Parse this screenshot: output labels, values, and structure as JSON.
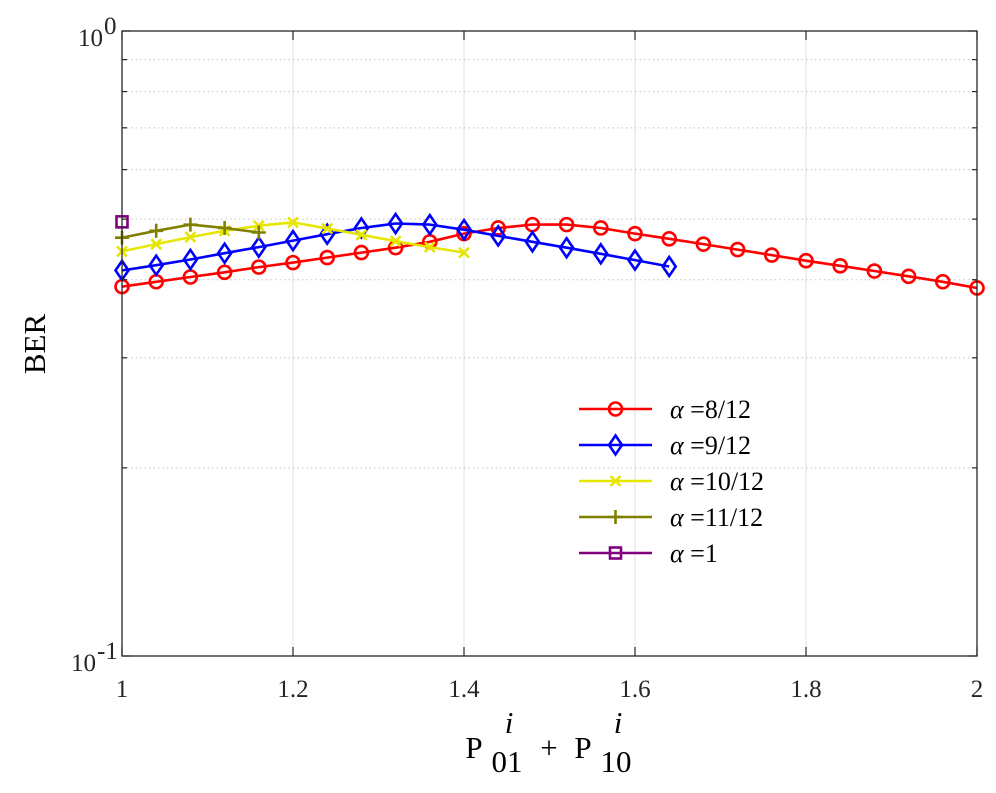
{
  "chart_data": {
    "type": "line",
    "title": "",
    "xlabel": {
      "base": "P",
      "sub1": "01",
      "sup1": "i",
      "plus": "+",
      "sub2": "10",
      "sup2": "i"
    },
    "ylabel": "BER",
    "xlim": [
      1,
      2
    ],
    "ylim": [
      0.1,
      1
    ],
    "yscale": "log",
    "grid": true,
    "x_ticks": [
      1,
      1.2,
      1.4,
      1.6,
      1.8,
      2
    ],
    "x_tick_labels": [
      "1",
      "1.2",
      "1.4",
      "1.6",
      "1.8",
      "2"
    ],
    "y_tick_labels": [
      {
        "value": 0.1,
        "base": "10",
        "exp": "-1"
      },
      {
        "value": 1,
        "base": "10",
        "exp": "0"
      }
    ],
    "legend_position": "lower-right",
    "series": [
      {
        "name": "α =8/12",
        "symbol": "α",
        "label": " =8/12",
        "color": "#ff0000",
        "marker": "circle",
        "x": [
          1,
          1.04,
          1.08,
          1.12,
          1.16,
          1.2,
          1.24,
          1.28,
          1.32,
          1.36,
          1.4,
          1.44,
          1.48,
          1.52,
          1.56,
          1.6,
          1.64,
          1.68,
          1.72,
          1.76,
          1.8,
          1.84,
          1.88,
          1.92,
          1.96,
          2
        ],
        "y": [
          0.39,
          0.397,
          0.404,
          0.411,
          0.419,
          0.426,
          0.434,
          0.442,
          0.45,
          0.46,
          0.474,
          0.484,
          0.49,
          0.49,
          0.484,
          0.474,
          0.465,
          0.456,
          0.447,
          0.438,
          0.429,
          0.421,
          0.413,
          0.405,
          0.397,
          0.388
        ]
      },
      {
        "name": "α =9/12",
        "symbol": "α",
        "label": " =9/12",
        "color": "#0000ff",
        "marker": "diamond",
        "x": [
          1,
          1.04,
          1.08,
          1.12,
          1.16,
          1.2,
          1.24,
          1.28,
          1.32,
          1.36,
          1.4,
          1.44,
          1.48,
          1.52,
          1.56,
          1.6,
          1.64
        ],
        "y": [
          0.414,
          0.422,
          0.431,
          0.441,
          0.451,
          0.462,
          0.473,
          0.484,
          0.492,
          0.49,
          0.481,
          0.47,
          0.46,
          0.45,
          0.44,
          0.43,
          0.42
        ]
      },
      {
        "name": "α =10/12",
        "symbol": "α",
        "label": " =10/12",
        "color": "#e6e600",
        "marker": "x",
        "x": [
          1,
          1.04,
          1.08,
          1.12,
          1.16,
          1.2,
          1.24,
          1.28,
          1.32,
          1.36,
          1.4
        ],
        "y": [
          0.444,
          0.456,
          0.468,
          0.479,
          0.488,
          0.494,
          0.483,
          0.472,
          0.461,
          0.451,
          0.442
        ]
      },
      {
        "name": "α =11/12",
        "symbol": "α",
        "label": " =11/12",
        "color": "#808000",
        "marker": "plus",
        "x": [
          1,
          1.04,
          1.08,
          1.12,
          1.16
        ],
        "y": [
          0.467,
          0.479,
          0.49,
          0.484,
          0.476
        ]
      },
      {
        "name": "α =1",
        "symbol": "α",
        "label": " =1",
        "color": "#800080",
        "marker": "square",
        "x": [
          1
        ],
        "y": [
          0.495
        ]
      }
    ]
  }
}
